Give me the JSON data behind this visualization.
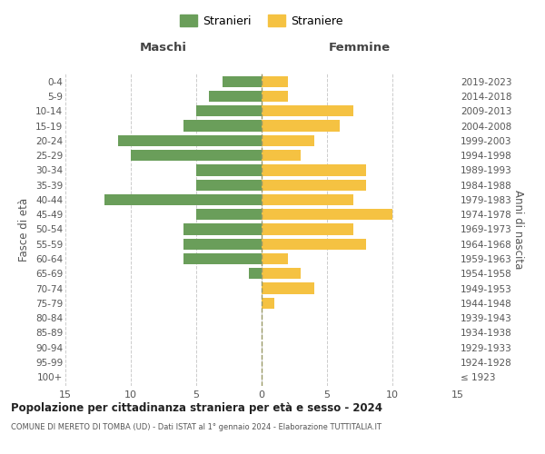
{
  "age_groups": [
    "100+",
    "95-99",
    "90-94",
    "85-89",
    "80-84",
    "75-79",
    "70-74",
    "65-69",
    "60-64",
    "55-59",
    "50-54",
    "45-49",
    "40-44",
    "35-39",
    "30-34",
    "25-29",
    "20-24",
    "15-19",
    "10-14",
    "5-9",
    "0-4"
  ],
  "birth_years": [
    "≤ 1923",
    "1924-1928",
    "1929-1933",
    "1934-1938",
    "1939-1943",
    "1944-1948",
    "1949-1953",
    "1954-1958",
    "1959-1963",
    "1964-1968",
    "1969-1973",
    "1974-1978",
    "1979-1983",
    "1984-1988",
    "1989-1993",
    "1994-1998",
    "1999-2003",
    "2004-2008",
    "2009-2013",
    "2014-2018",
    "2019-2023"
  ],
  "males": [
    0,
    0,
    0,
    0,
    0,
    0,
    0,
    1,
    6,
    6,
    6,
    5,
    12,
    5,
    5,
    10,
    11,
    6,
    5,
    4,
    3
  ],
  "females": [
    0,
    0,
    0,
    0,
    0,
    1,
    4,
    3,
    2,
    8,
    7,
    10,
    7,
    8,
    8,
    3,
    4,
    6,
    7,
    2,
    2
  ],
  "male_color": "#6a9e5a",
  "female_color": "#f5c242",
  "male_label": "Stranieri",
  "female_label": "Straniere",
  "title": "Popolazione per cittadinanza straniera per età e sesso - 2024",
  "subtitle": "COMUNE DI MERETO DI TOMBA (UD) - Dati ISTAT al 1° gennaio 2024 - Elaborazione TUTTITALIA.IT",
  "ylabel_left": "Fasce di età",
  "ylabel_right": "Anni di nascita",
  "maschi_label": "Maschi",
  "femmine_label": "Femmine",
  "xlim": 15,
  "background_color": "#ffffff",
  "grid_color": "#cccccc"
}
